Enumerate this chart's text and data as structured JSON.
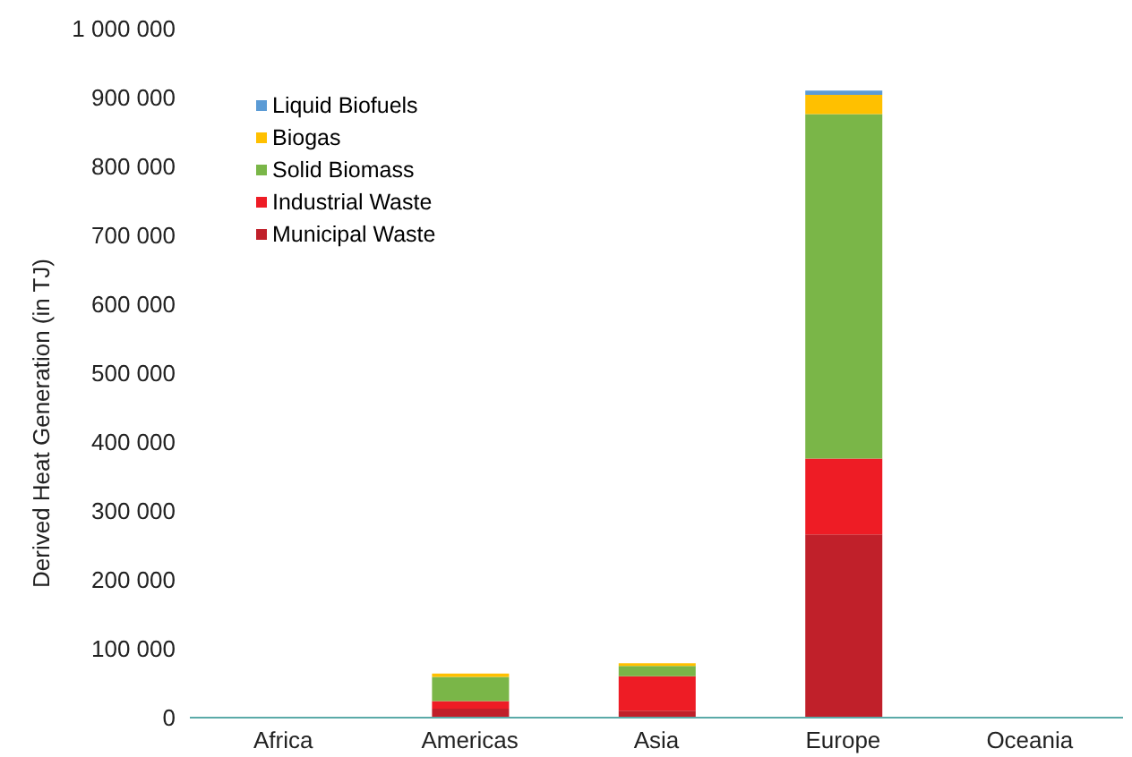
{
  "chart_data": {
    "type": "bar",
    "stacked": true,
    "ylabel": "Derived Heat Generation (in TJ)",
    "categories": [
      "Africa",
      "Americas",
      "Asia",
      "Europe",
      "Oceania"
    ],
    "series": [
      {
        "name": "Municipal Waste",
        "color": "#c0202a",
        "values": [
          0,
          13000,
          10000,
          266000,
          0
        ]
      },
      {
        "name": "Industrial Waste",
        "color": "#ee1c25",
        "values": [
          0,
          11000,
          50000,
          110000,
          0
        ]
      },
      {
        "name": "Solid Biomass",
        "color": "#7ab648",
        "values": [
          0,
          35000,
          15000,
          500000,
          0
        ]
      },
      {
        "name": "Biogas",
        "color": "#ffc000",
        "values": [
          0,
          5000,
          4000,
          28000,
          0
        ]
      },
      {
        "name": "Liquid Biofuels",
        "color": "#5b9bd5",
        "values": [
          0,
          0,
          0,
          6000,
          0
        ]
      }
    ],
    "ylim": [
      0,
      1000000
    ],
    "yticks": [
      {
        "value": 0,
        "label": "0"
      },
      {
        "value": 100000,
        "label": "100 000"
      },
      {
        "value": 200000,
        "label": "200 000"
      },
      {
        "value": 300000,
        "label": "300 000"
      },
      {
        "value": 400000,
        "label": "400 000"
      },
      {
        "value": 500000,
        "label": "500 000"
      },
      {
        "value": 600000,
        "label": "600 000"
      },
      {
        "value": 700000,
        "label": "700 000"
      },
      {
        "value": 800000,
        "label": "800 000"
      },
      {
        "value": 900000,
        "label": "900 000"
      },
      {
        "value": 1000000,
        "label": "1 000 000"
      }
    ],
    "legend": "top left",
    "grid": false
  }
}
